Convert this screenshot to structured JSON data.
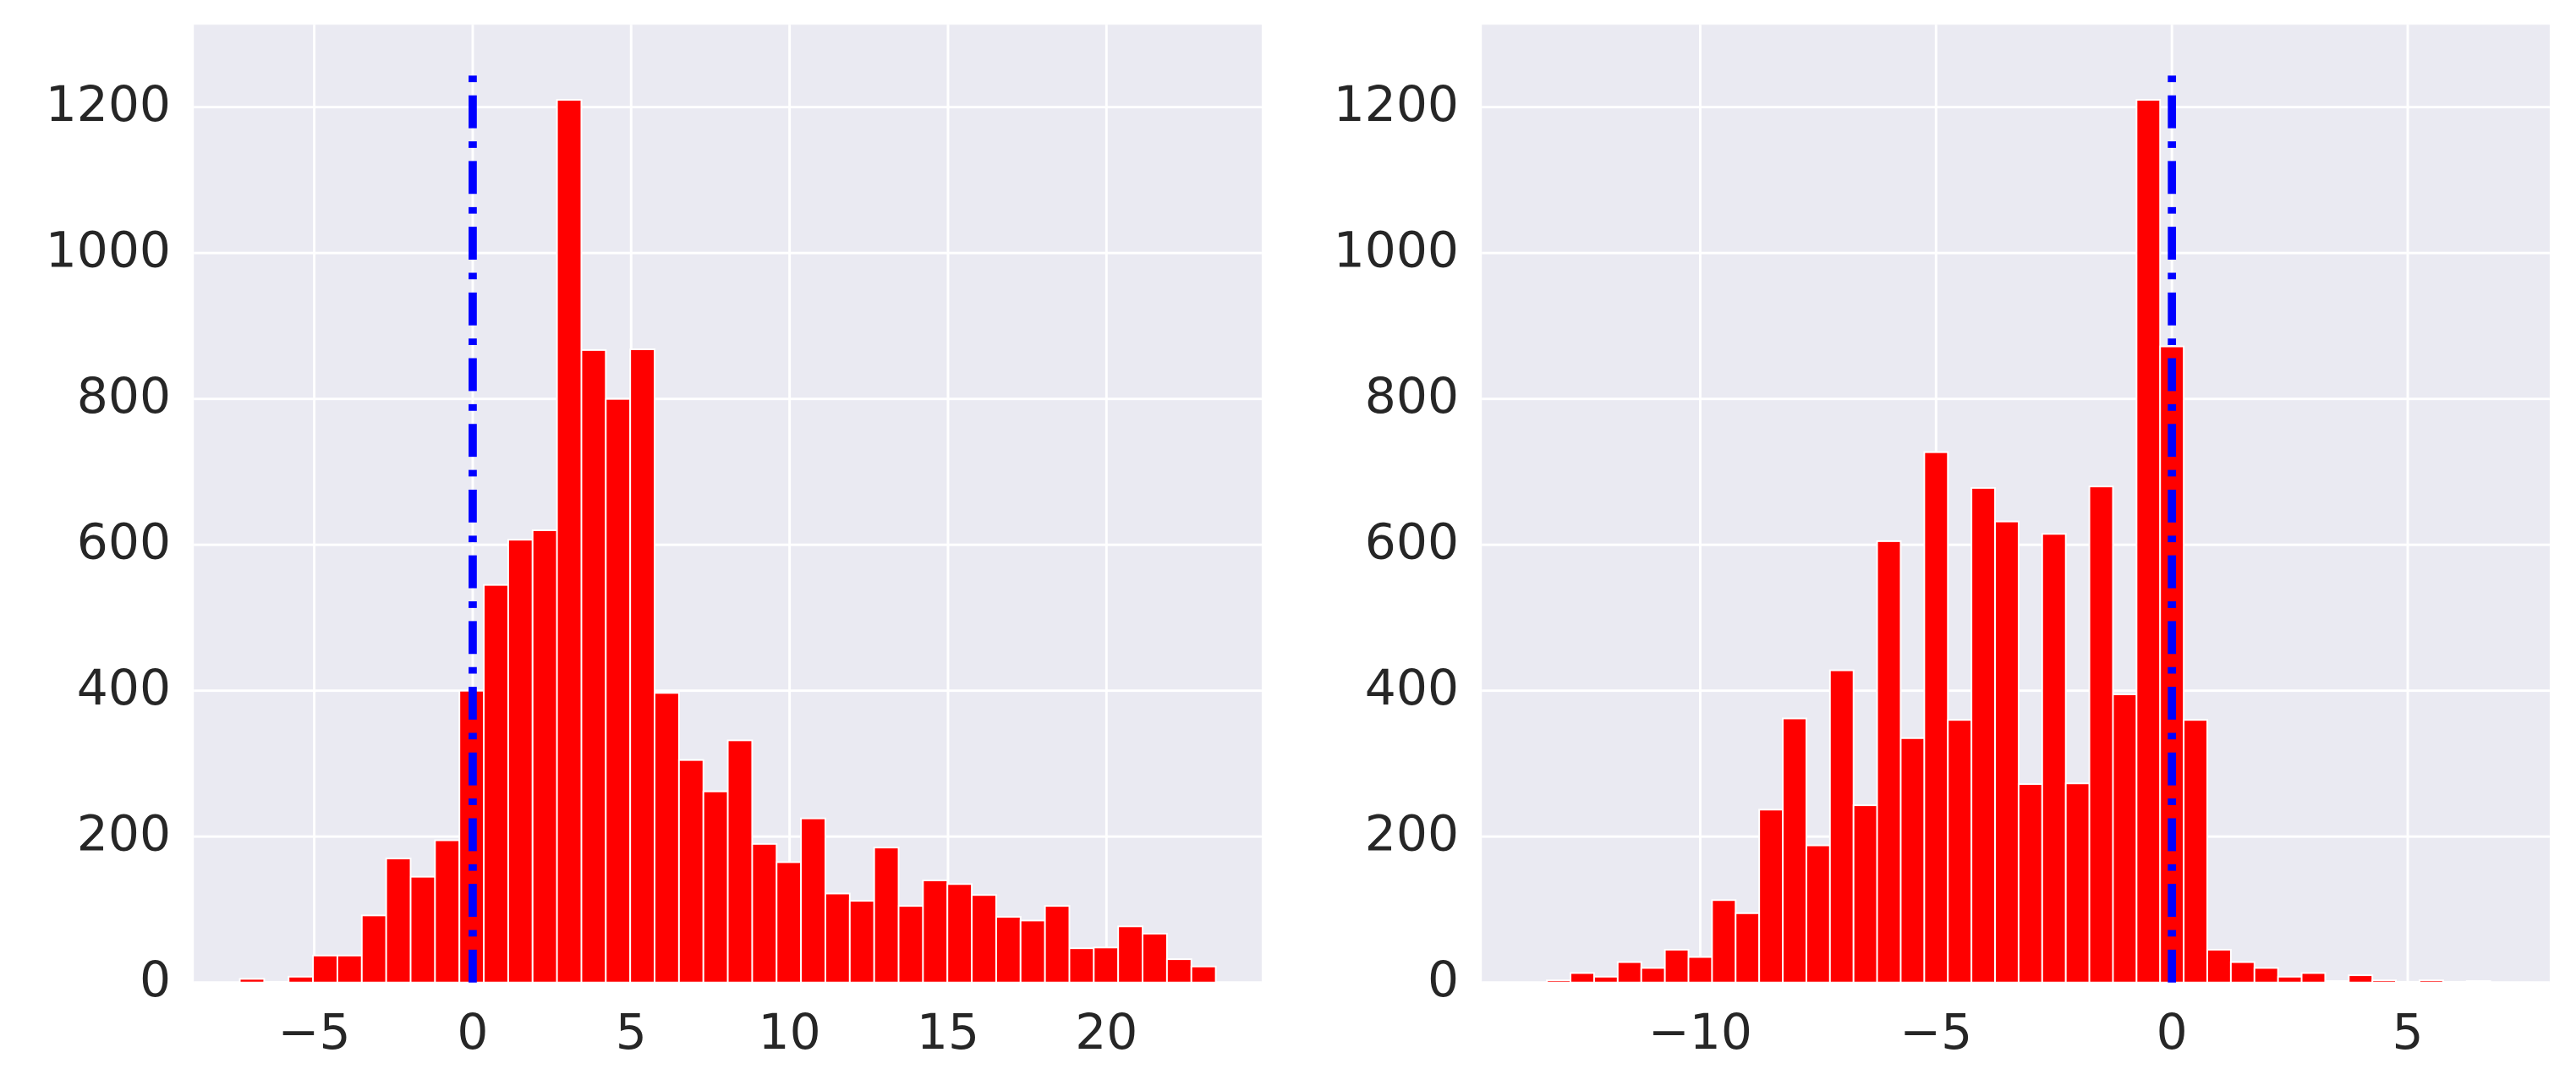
{
  "chart_data": [
    {
      "type": "histogram",
      "bins": [
        -7.35,
        -6.58,
        -5.81,
        -5.04,
        -4.27,
        -3.5,
        -2.73,
        -1.96,
        -1.19,
        -0.42,
        0.35,
        1.12,
        1.89,
        2.66,
        3.43,
        4.2,
        4.97,
        5.74,
        6.51,
        7.28,
        8.05,
        8.82,
        9.59,
        10.36,
        11.13,
        11.9,
        12.67,
        13.44,
        14.21,
        14.98,
        15.75,
        16.52,
        17.29,
        18.06,
        18.83,
        19.6,
        20.37,
        21.14,
        21.91,
        22.68,
        23.45
      ],
      "values": [
        5,
        1,
        8,
        37,
        37,
        92,
        170,
        145,
        195,
        400,
        545,
        607,
        620,
        1210,
        867,
        800,
        868,
        397,
        305,
        262,
        332,
        190,
        165,
        225,
        122,
        112,
        185,
        105,
        140,
        135,
        120,
        90,
        85,
        105,
        47,
        48,
        77,
        67,
        32,
        22
      ],
      "color": "#ff0000",
      "xlim": [
        -8.8,
        24.9
      ],
      "ylim": [
        0,
        1313
      ],
      "xticks": [
        {
          "value": -5,
          "label": "−5"
        },
        0,
        5,
        10,
        15,
        20
      ],
      "yticks": [
        0,
        200,
        400,
        600,
        800,
        1000,
        1200
      ],
      "grid": true,
      "vline": {
        "x": 0,
        "ymin": 0,
        "ymax": 1250,
        "color": "#0000ff"
      }
    },
    {
      "type": "histogram",
      "bins": [
        -13.25,
        -12.75,
        -12.25,
        -11.75,
        -11.25,
        -10.75,
        -10.25,
        -9.75,
        -9.25,
        -8.75,
        -8.25,
        -7.75,
        -7.25,
        -6.75,
        -6.25,
        -5.75,
        -5.25,
        -4.75,
        -4.25,
        -3.75,
        -3.25,
        -2.75,
        -2.25,
        -1.75,
        -1.25,
        -0.75,
        -0.25,
        0.25,
        0.75,
        1.25,
        1.75,
        2.25,
        2.75,
        3.25,
        3.75,
        4.25,
        4.75,
        5.25,
        5.75,
        6.25,
        6.75
      ],
      "values": [
        3,
        13,
        8,
        28,
        20,
        45,
        35,
        113,
        95,
        237,
        362,
        188,
        428,
        243,
        605,
        335,
        727,
        360,
        678,
        632,
        272,
        615,
        273,
        680,
        395,
        1210,
        872,
        360,
        45,
        28,
        20,
        8,
        13,
        2,
        10,
        3,
        1,
        3,
        1,
        2
      ],
      "color": "#ff0000",
      "xlim": [
        -14.63,
        8.01
      ],
      "ylim": [
        0,
        1313
      ],
      "xticks": [
        {
          "value": -10,
          "label": "−10"
        },
        {
          "value": -5,
          "label": "−5"
        },
        0,
        5
      ],
      "yticks": [
        0,
        200,
        400,
        600,
        800,
        1000,
        1200
      ],
      "grid": true,
      "vline": {
        "x": 0,
        "ymin": 0,
        "ymax": 1250,
        "color": "#0000ff"
      }
    }
  ]
}
